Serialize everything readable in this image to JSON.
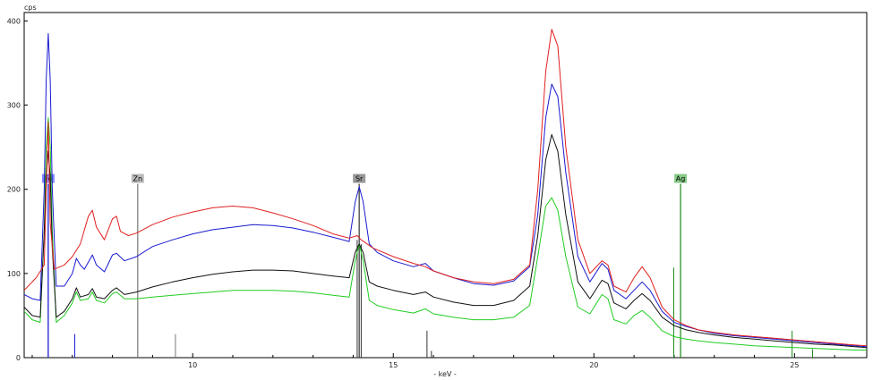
{
  "chart_data": {
    "type": "line",
    "title": "",
    "ylabel": "cps",
    "xlabel": "- keV -",
    "xlim": [
      5.8,
      26.8
    ],
    "ylim": [
      0,
      410
    ],
    "x_ticks": [
      10,
      15,
      20,
      25
    ],
    "x_tick_labels": [
      "10",
      "15",
      "20",
      "25"
    ],
    "y_ticks": [
      0,
      100,
      200,
      300,
      400
    ],
    "y_tick_labels": [
      "0",
      "100",
      "200",
      "300",
      "400"
    ],
    "grid": false,
    "legend": "none",
    "series": [
      {
        "color": "#e02020",
        "points": [
          [
            5.8,
            80
          ],
          [
            6.1,
            95
          ],
          [
            6.3,
            110
          ],
          [
            6.35,
            200
          ],
          [
            6.4,
            280
          ],
          [
            6.45,
            160
          ],
          [
            6.55,
            105
          ],
          [
            6.8,
            110
          ],
          [
            7.0,
            120
          ],
          [
            7.2,
            135
          ],
          [
            7.4,
            168
          ],
          [
            7.5,
            175
          ],
          [
            7.6,
            155
          ],
          [
            7.8,
            140
          ],
          [
            8.0,
            165
          ],
          [
            8.1,
            168
          ],
          [
            8.2,
            150
          ],
          [
            8.4,
            145
          ],
          [
            8.6,
            148
          ],
          [
            9.0,
            158
          ],
          [
            9.5,
            167
          ],
          [
            10.0,
            173
          ],
          [
            10.5,
            178
          ],
          [
            11.0,
            180
          ],
          [
            11.5,
            178
          ],
          [
            12.0,
            172
          ],
          [
            12.5,
            165
          ],
          [
            13.0,
            157
          ],
          [
            13.5,
            147
          ],
          [
            13.9,
            142
          ],
          [
            14.1,
            145
          ],
          [
            14.2,
            140
          ],
          [
            14.5,
            130
          ],
          [
            15.0,
            120
          ],
          [
            15.5,
            112
          ],
          [
            15.8,
            108
          ],
          [
            16.0,
            103
          ],
          [
            16.5,
            95
          ],
          [
            17.0,
            90
          ],
          [
            17.5,
            88
          ],
          [
            18.0,
            93
          ],
          [
            18.4,
            110
          ],
          [
            18.6,
            200
          ],
          [
            18.8,
            340
          ],
          [
            18.95,
            390
          ],
          [
            19.1,
            370
          ],
          [
            19.3,
            250
          ],
          [
            19.6,
            140
          ],
          [
            19.9,
            100
          ],
          [
            20.2,
            115
          ],
          [
            20.35,
            110
          ],
          [
            20.5,
            85
          ],
          [
            20.8,
            78
          ],
          [
            21.0,
            95
          ],
          [
            21.2,
            108
          ],
          [
            21.4,
            95
          ],
          [
            21.7,
            60
          ],
          [
            22.0,
            45
          ],
          [
            22.3,
            38
          ],
          [
            22.6,
            33
          ],
          [
            23.0,
            30
          ],
          [
            23.5,
            27
          ],
          [
            24.0,
            25
          ],
          [
            24.5,
            23
          ],
          [
            25.0,
            21
          ],
          [
            25.5,
            19
          ],
          [
            26.0,
            17
          ],
          [
            26.5,
            15
          ],
          [
            26.8,
            14
          ]
        ]
      },
      {
        "color": "#1a1ad0",
        "points": [
          [
            5.8,
            75
          ],
          [
            6.0,
            70
          ],
          [
            6.2,
            68
          ],
          [
            6.3,
            200
          ],
          [
            6.35,
            330
          ],
          [
            6.4,
            385
          ],
          [
            6.45,
            330
          ],
          [
            6.5,
            200
          ],
          [
            6.6,
            85
          ],
          [
            6.8,
            85
          ],
          [
            7.0,
            100
          ],
          [
            7.1,
            118
          ],
          [
            7.2,
            110
          ],
          [
            7.3,
            105
          ],
          [
            7.5,
            122
          ],
          [
            7.6,
            110
          ],
          [
            7.8,
            102
          ],
          [
            8.0,
            122
          ],
          [
            8.1,
            124
          ],
          [
            8.3,
            115
          ],
          [
            8.6,
            120
          ],
          [
            9.0,
            132
          ],
          [
            9.5,
            140
          ],
          [
            10.0,
            147
          ],
          [
            10.5,
            152
          ],
          [
            11.0,
            155
          ],
          [
            11.5,
            158
          ],
          [
            12.0,
            157
          ],
          [
            12.5,
            154
          ],
          [
            13.0,
            149
          ],
          [
            13.5,
            143
          ],
          [
            13.9,
            138
          ],
          [
            14.05,
            185
          ],
          [
            14.15,
            203
          ],
          [
            14.25,
            185
          ],
          [
            14.4,
            135
          ],
          [
            14.6,
            125
          ],
          [
            15.0,
            115
          ],
          [
            15.5,
            108
          ],
          [
            15.8,
            112
          ],
          [
            16.0,
            103
          ],
          [
            16.5,
            95
          ],
          [
            17.0,
            88
          ],
          [
            17.5,
            86
          ],
          [
            18.0,
            91
          ],
          [
            18.4,
            108
          ],
          [
            18.6,
            170
          ],
          [
            18.8,
            285
          ],
          [
            18.95,
            325
          ],
          [
            19.1,
            310
          ],
          [
            19.3,
            220
          ],
          [
            19.6,
            120
          ],
          [
            19.9,
            90
          ],
          [
            20.2,
            112
          ],
          [
            20.35,
            105
          ],
          [
            20.5,
            80
          ],
          [
            20.8,
            70
          ],
          [
            21.0,
            80
          ],
          [
            21.2,
            90
          ],
          [
            21.4,
            80
          ],
          [
            21.7,
            55
          ],
          [
            22.0,
            42
          ],
          [
            22.3,
            37
          ],
          [
            22.6,
            33
          ],
          [
            23.0,
            29
          ],
          [
            23.5,
            26
          ],
          [
            24.0,
            24
          ],
          [
            24.5,
            22
          ],
          [
            25.0,
            20
          ],
          [
            25.5,
            18
          ],
          [
            26.0,
            16
          ],
          [
            26.5,
            14
          ],
          [
            26.8,
            13
          ]
        ]
      },
      {
        "color": "#111111",
        "points": [
          [
            5.8,
            60
          ],
          [
            6.0,
            50
          ],
          [
            6.2,
            48
          ],
          [
            6.3,
            150
          ],
          [
            6.35,
            215
          ],
          [
            6.4,
            245
          ],
          [
            6.45,
            215
          ],
          [
            6.5,
            130
          ],
          [
            6.6,
            48
          ],
          [
            6.8,
            55
          ],
          [
            7.0,
            70
          ],
          [
            7.1,
            83
          ],
          [
            7.2,
            72
          ],
          [
            7.4,
            75
          ],
          [
            7.5,
            82
          ],
          [
            7.6,
            72
          ],
          [
            7.8,
            70
          ],
          [
            8.0,
            80
          ],
          [
            8.1,
            83
          ],
          [
            8.3,
            75
          ],
          [
            8.6,
            78
          ],
          [
            9.0,
            84
          ],
          [
            9.5,
            90
          ],
          [
            10.0,
            95
          ],
          [
            10.5,
            99
          ],
          [
            11.0,
            102
          ],
          [
            11.5,
            104
          ],
          [
            12.0,
            104
          ],
          [
            12.5,
            103
          ],
          [
            13.0,
            100
          ],
          [
            13.5,
            97
          ],
          [
            13.9,
            95
          ],
          [
            14.05,
            125
          ],
          [
            14.15,
            135
          ],
          [
            14.25,
            125
          ],
          [
            14.4,
            90
          ],
          [
            14.6,
            85
          ],
          [
            15.0,
            80
          ],
          [
            15.5,
            75
          ],
          [
            15.8,
            78
          ],
          [
            16.0,
            72
          ],
          [
            16.5,
            66
          ],
          [
            17.0,
            62
          ],
          [
            17.5,
            62
          ],
          [
            18.0,
            68
          ],
          [
            18.4,
            85
          ],
          [
            18.6,
            145
          ],
          [
            18.8,
            235
          ],
          [
            18.95,
            265
          ],
          [
            19.1,
            245
          ],
          [
            19.3,
            170
          ],
          [
            19.6,
            90
          ],
          [
            19.9,
            70
          ],
          [
            20.2,
            92
          ],
          [
            20.35,
            88
          ],
          [
            20.5,
            65
          ],
          [
            20.8,
            58
          ],
          [
            21.0,
            68
          ],
          [
            21.2,
            76
          ],
          [
            21.4,
            68
          ],
          [
            21.7,
            48
          ],
          [
            22.0,
            38
          ],
          [
            22.3,
            33
          ],
          [
            22.6,
            30
          ],
          [
            23.0,
            27
          ],
          [
            23.5,
            24
          ],
          [
            24.0,
            22
          ],
          [
            24.5,
            20
          ],
          [
            25.0,
            18
          ],
          [
            25.5,
            16
          ],
          [
            26.0,
            15
          ],
          [
            26.5,
            13
          ],
          [
            26.8,
            12
          ]
        ]
      },
      {
        "color": "#22cc22",
        "points": [
          [
            5.8,
            55
          ],
          [
            6.0,
            45
          ],
          [
            6.2,
            42
          ],
          [
            6.3,
            150
          ],
          [
            6.35,
            250
          ],
          [
            6.4,
            285
          ],
          [
            6.45,
            250
          ],
          [
            6.5,
            150
          ],
          [
            6.6,
            42
          ],
          [
            6.8,
            50
          ],
          [
            7.0,
            65
          ],
          [
            7.1,
            78
          ],
          [
            7.2,
            68
          ],
          [
            7.4,
            70
          ],
          [
            7.5,
            78
          ],
          [
            7.6,
            68
          ],
          [
            7.8,
            65
          ],
          [
            8.0,
            76
          ],
          [
            8.1,
            78
          ],
          [
            8.3,
            70
          ],
          [
            8.6,
            70
          ],
          [
            9.0,
            72
          ],
          [
            9.5,
            74
          ],
          [
            10.0,
            76
          ],
          [
            10.5,
            78
          ],
          [
            11.0,
            80
          ],
          [
            11.5,
            80
          ],
          [
            12.0,
            80
          ],
          [
            12.5,
            79
          ],
          [
            13.0,
            77
          ],
          [
            13.5,
            74
          ],
          [
            13.9,
            72
          ],
          [
            14.05,
            115
          ],
          [
            14.15,
            135
          ],
          [
            14.25,
            115
          ],
          [
            14.4,
            68
          ],
          [
            14.6,
            62
          ],
          [
            15.0,
            57
          ],
          [
            15.5,
            53
          ],
          [
            15.8,
            58
          ],
          [
            16.0,
            52
          ],
          [
            16.5,
            48
          ],
          [
            17.0,
            45
          ],
          [
            17.5,
            45
          ],
          [
            18.0,
            48
          ],
          [
            18.4,
            62
          ],
          [
            18.6,
            120
          ],
          [
            18.8,
            180
          ],
          [
            18.95,
            190
          ],
          [
            19.1,
            175
          ],
          [
            19.3,
            120
          ],
          [
            19.6,
            60
          ],
          [
            19.9,
            52
          ],
          [
            20.2,
            75
          ],
          [
            20.35,
            70
          ],
          [
            20.5,
            45
          ],
          [
            20.8,
            40
          ],
          [
            21.0,
            50
          ],
          [
            21.2,
            56
          ],
          [
            21.4,
            48
          ],
          [
            21.7,
            32
          ],
          [
            22.0,
            25
          ],
          [
            22.3,
            22
          ],
          [
            22.6,
            20
          ],
          [
            23.0,
            18
          ],
          [
            23.5,
            16
          ],
          [
            24.0,
            14
          ],
          [
            24.5,
            13
          ],
          [
            25.0,
            12
          ],
          [
            25.5,
            11
          ],
          [
            26.0,
            10
          ],
          [
            26.5,
            9
          ],
          [
            26.8,
            9
          ]
        ]
      }
    ],
    "element_markers": [
      {
        "label": "Fe",
        "energy": 6.4,
        "color": "#1a1ad0",
        "label_bg": "#8888ff",
        "label_y": 215
      },
      {
        "label": "Zn",
        "energy": 8.63,
        "color": "#777777",
        "label_bg": "#bbbbbb",
        "label_y": 215
      },
      {
        "label": "Sr",
        "energy": 14.15,
        "color": "#333333",
        "label_bg": "#999999",
        "label_y": 215
      },
      {
        "label": "Ag",
        "energy": 22.16,
        "color": "#1a8a1a",
        "label_bg": "#88cc88",
        "label_y": 215
      }
    ],
    "minor_lines": [
      {
        "energy": 6.4,
        "top": 195,
        "color": "#1a1ad0"
      },
      {
        "energy": 7.06,
        "top": 28,
        "color": "#1a1ad0"
      },
      {
        "energy": 9.57,
        "top": 28,
        "color": "#777777"
      },
      {
        "energy": 14.1,
        "top": 140,
        "color": "#333333"
      },
      {
        "energy": 14.2,
        "top": 135,
        "color": "#333333"
      },
      {
        "energy": 15.84,
        "top": 32,
        "color": "#333333"
      },
      {
        "energy": 15.95,
        "top": 8,
        "color": "#333333"
      },
      {
        "energy": 21.99,
        "top": 107,
        "color": "#1a8a1a"
      },
      {
        "energy": 24.94,
        "top": 32,
        "color": "#1a8a1a"
      },
      {
        "energy": 25.45,
        "top": 10,
        "color": "#1a8a1a"
      }
    ]
  }
}
